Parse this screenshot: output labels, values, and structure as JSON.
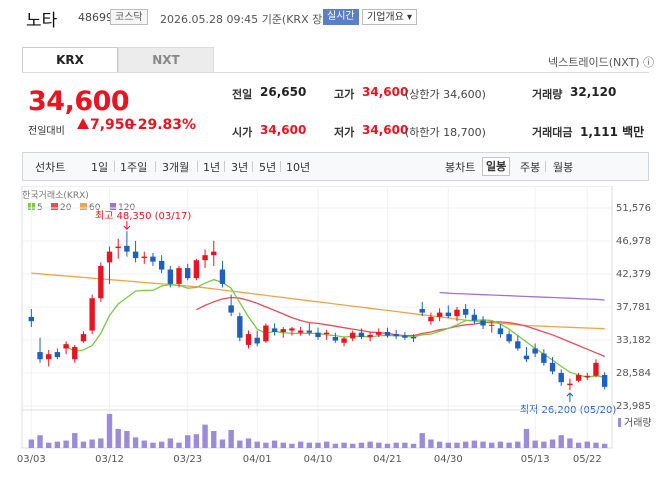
{
  "header": {
    "stock_name": "노타",
    "stock_code": "486990",
    "market": "코스닥",
    "datetime": "2026.05.28 09:45",
    "basis": "기준(KRX 장중)",
    "realtime": "실시간",
    "overview": "기업개요 ▾"
  },
  "tabs": {
    "krx": "KRX",
    "nxt": "NXT",
    "nextrade": "넥스트레이드(NXT) ⓘ"
  },
  "quote": {
    "price": "34,600",
    "change_label": "전일대비",
    "change_amount": "7,950",
    "change_rate": "+29.83%"
  },
  "stats": {
    "prev_label": "전일",
    "prev_value": "26,650",
    "high_label": "고가",
    "high_value": "34,600",
    "high_sub": "(상한가 34,600)",
    "volume_label": "거래량",
    "volume_value": "32,120",
    "open_label": "시가",
    "open_value": "34,600",
    "low_label": "저가",
    "low_value": "34,600",
    "low_sub": "(하한가 18,700)",
    "amount_label": "거래대금",
    "amount_value": "1,111 백만"
  },
  "toolbar": {
    "line_chart": "선차트",
    "periods": [
      "1일",
      "1주일",
      "3개월",
      "1년",
      "3년",
      "5년",
      "10년"
    ],
    "candle_chart": "봉차트",
    "candle_periods": [
      "일봉",
      "주봉",
      "월봉"
    ],
    "active_candle": "일봉"
  },
  "chart_data": {
    "type": "candlestick",
    "source_label": "한국거래소(KRX)",
    "ma_legend": [
      {
        "name": "5",
        "color": "#7ac943"
      },
      {
        "name": "20",
        "color": "#e74c57"
      },
      {
        "name": "60",
        "color": "#f0a34a"
      },
      {
        "name": "120",
        "color": "#a371d6"
      }
    ],
    "y_ticks": [
      "51,576",
      "46,978",
      "42,379",
      "37,781",
      "33,182",
      "28,584",
      "23,985"
    ],
    "y_tick_values": [
      51576,
      46978,
      42379,
      37781,
      33182,
      28584,
      23985
    ],
    "x_ticks": [
      "03/03",
      "03/12",
      "03/23",
      "04/01",
      "04/10",
      "04/21",
      "04/30",
      "05/13",
      "05/22"
    ],
    "high_annotation": "최고 48,350 (03/17)",
    "low_annotation": "최저 26,200 (05/20)",
    "volume_label": "거래량",
    "candles": [
      [
        36400,
        37500,
        35000,
        35800
      ],
      [
        31500,
        33500,
        30000,
        30500
      ],
      [
        30500,
        31800,
        29500,
        31200
      ],
      [
        31500,
        32000,
        30500,
        30800
      ],
      [
        32000,
        33000,
        31200,
        32600
      ],
      [
        30500,
        32500,
        30000,
        32200
      ],
      [
        33000,
        34400,
        32800,
        34000
      ],
      [
        34500,
        39500,
        34000,
        39000
      ],
      [
        39000,
        44000,
        38500,
        43500
      ],
      [
        44000,
        46200,
        41000,
        45500
      ],
      [
        46000,
        47300,
        44500,
        46200
      ],
      [
        46300,
        48350,
        44800,
        45500
      ],
      [
        45500,
        47000,
        44000,
        44600
      ],
      [
        44600,
        45500,
        43800,
        44800
      ],
      [
        44800,
        45300,
        43500,
        44100
      ],
      [
        44200,
        45000,
        42500,
        43000
      ],
      [
        43000,
        43500,
        40500,
        41000
      ],
      [
        41000,
        43500,
        40500,
        43200
      ],
      [
        43200,
        43800,
        41500,
        41800
      ],
      [
        41800,
        44500,
        41500,
        44300
      ],
      [
        44300,
        45800,
        43200,
        45000
      ],
      [
        45000,
        47000,
        43500,
        45500
      ],
      [
        43000,
        44200,
        40500,
        41000
      ],
      [
        38000,
        39500,
        36500,
        37000
      ],
      [
        36500,
        37000,
        33000,
        33500
      ],
      [
        32500,
        34500,
        32000,
        34000
      ],
      [
        33500,
        34500,
        32300,
        32700
      ],
      [
        33000,
        35500,
        32800,
        35200
      ],
      [
        34800,
        35500,
        33800,
        34300
      ],
      [
        34300,
        35000,
        33500,
        34700
      ],
      [
        34500,
        35000,
        33800,
        34800
      ],
      [
        34200,
        35000,
        33800,
        34500
      ],
      [
        34500,
        35500,
        33800,
        34200
      ],
      [
        34200,
        34900,
        33200,
        33600
      ],
      [
        34000,
        34600,
        33200,
        34200
      ],
      [
        33600,
        34200,
        32800,
        33100
      ],
      [
        32800,
        33600,
        32300,
        33400
      ],
      [
        33400,
        34500,
        33000,
        34200
      ],
      [
        34200,
        34800,
        33300,
        33600
      ],
      [
        33600,
        34300,
        33000,
        33900
      ],
      [
        33900,
        34800,
        33600,
        34300
      ],
      [
        34300,
        34900,
        33500,
        33800
      ],
      [
        34000,
        34600,
        33300,
        33700
      ],
      [
        33800,
        34300,
        33200,
        33500
      ],
      [
        33600,
        34000,
        32900,
        33400
      ],
      [
        37500,
        38500,
        36500,
        37000
      ],
      [
        35800,
        37000,
        35300,
        36400
      ],
      [
        36400,
        37600,
        35800,
        37000
      ],
      [
        37000,
        38000,
        36200,
        36500
      ],
      [
        36500,
        37800,
        35800,
        37400
      ],
      [
        37500,
        38200,
        36200,
        36700
      ],
      [
        36700,
        37500,
        35400,
        35900
      ],
      [
        35900,
        36500,
        34700,
        35200
      ],
      [
        35200,
        35800,
        34200,
        35300
      ],
      [
        34800,
        35400,
        33500,
        34000
      ],
      [
        34000,
        34500,
        32700,
        33000
      ],
      [
        33000,
        33800,
        31700,
        32000
      ],
      [
        31000,
        32200,
        30100,
        30500
      ],
      [
        32000,
        32700,
        30800,
        31300
      ],
      [
        31300,
        31900,
        29600,
        30000
      ],
      [
        30000,
        30800,
        28400,
        28800
      ],
      [
        28600,
        29100,
        26800,
        27300
      ],
      [
        26900,
        27800,
        26200,
        27100
      ],
      [
        27500,
        28600,
        27300,
        28300
      ],
      [
        28000,
        28600,
        27600,
        28200
      ],
      [
        28200,
        30500,
        28000,
        30000
      ],
      [
        28300,
        28700,
        26300,
        26650
      ]
    ],
    "ma5": [
      null,
      null,
      null,
      null,
      32300,
      31600,
      31800,
      32400,
      34100,
      36600,
      38200,
      39100,
      40000,
      40100,
      40100,
      40700,
      40900,
      40800,
      40400,
      40500,
      41100,
      41600,
      41200,
      40400,
      38400,
      36400,
      34700,
      34100,
      34400,
      34200,
      34100,
      34100,
      34100,
      34100,
      33900,
      33800,
      33600,
      33700,
      33700,
      33600,
      33800,
      33800,
      33800,
      33700,
      33600,
      33900,
      34000,
      34400,
      34800,
      35300,
      35900,
      35900,
      36000,
      35900,
      35400,
      34700,
      33800,
      32900,
      32000,
      31200,
      30400,
      29500,
      28700,
      28300,
      28000,
      28200,
      28000
    ],
    "ma20": [
      null,
      null,
      null,
      null,
      null,
      null,
      null,
      null,
      null,
      null,
      null,
      null,
      null,
      null,
      null,
      null,
      null,
      null,
      null,
      37400,
      38000,
      38500,
      38900,
      39100,
      39000,
      38700,
      38300,
      37800,
      37300,
      36800,
      36300,
      35900,
      35600,
      35500,
      35300,
      35100,
      34900,
      34700,
      34500,
      34300,
      34200,
      34100,
      33900,
      33800,
      33800,
      34100,
      34300,
      34600,
      34800,
      35100,
      35300,
      35400,
      35600,
      35700,
      35700,
      35600,
      35400,
      35100,
      34700,
      34300,
      33900,
      33400,
      32900,
      32400,
      31900,
      31400,
      30900
    ],
    "ma60": [
      42500,
      42400,
      42300,
      42200,
      42100,
      42000,
      41900,
      41800,
      41700,
      41600,
      41500,
      41400,
      41300,
      41200,
      41100,
      41000,
      40900,
      40800,
      40700,
      40600,
      40450,
      40300,
      40150,
      40000,
      39850,
      39700,
      39550,
      39400,
      39250,
      39100,
      38950,
      38800,
      38650,
      38500,
      38350,
      38200,
      38050,
      37900,
      37750,
      37600,
      37450,
      37300,
      37150,
      37000,
      36850,
      36700,
      36550,
      36400,
      36250,
      36100,
      35950,
      35800,
      35700,
      35600,
      35500,
      35400,
      35300,
      35200,
      35150,
      35100,
      35050,
      35000,
      34950,
      34900,
      34850,
      34800,
      34750
    ],
    "ma120": [
      null,
      null,
      null,
      null,
      null,
      null,
      null,
      null,
      null,
      null,
      null,
      null,
      null,
      null,
      null,
      null,
      null,
      null,
      null,
      null,
      null,
      null,
      null,
      null,
      null,
      null,
      null,
      null,
      null,
      null,
      null,
      null,
      null,
      null,
      null,
      null,
      null,
      null,
      null,
      null,
      null,
      null,
      null,
      null,
      null,
      null,
      null,
      39800,
      39700,
      39650,
      39600,
      39550,
      39500,
      39450,
      39400,
      39350,
      39300,
      39250,
      39200,
      39150,
      39100,
      39050,
      39000,
      38950,
      38900,
      38850,
      38750
    ],
    "volume": [
      8,
      12,
      5,
      6,
      7,
      14,
      6,
      8,
      9,
      32,
      18,
      16,
      10,
      7,
      5,
      6,
      9,
      5,
      12,
      13,
      22,
      16,
      8,
      17,
      7,
      9,
      6,
      5,
      7,
      5,
      4,
      6,
      5,
      5,
      6,
      4,
      5,
      4,
      5,
      6,
      5,
      4,
      5,
      5,
      4,
      14,
      8,
      6,
      5,
      5,
      6,
      7,
      6,
      5,
      6,
      5,
      6,
      18,
      7,
      6,
      8,
      12,
      9,
      5,
      6,
      5,
      4
    ]
  }
}
